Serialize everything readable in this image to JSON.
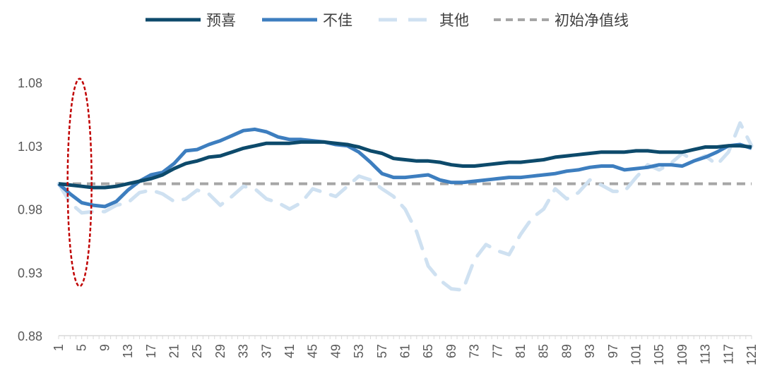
{
  "chart_data": {
    "type": "line",
    "title": "",
    "xlabel": "",
    "ylabel": "",
    "x_start": 1,
    "x_end": 121,
    "x_tick_labels": [
      "1",
      "5",
      "9",
      "13",
      "17",
      "21",
      "25",
      "29",
      "33",
      "37",
      "41",
      "45",
      "49",
      "53",
      "57",
      "61",
      "65",
      "69",
      "73",
      "77",
      "81",
      "85",
      "89",
      "93",
      "97",
      "101",
      "105",
      "109",
      "113",
      "117",
      "121"
    ],
    "y_tick_labels": [
      "1.08",
      "1.03",
      "0.98",
      "0.93",
      "0.88"
    ],
    "y_ticks": [
      1.08,
      1.03,
      0.98,
      0.93,
      0.88
    ],
    "ylim": [
      0.88,
      1.08
    ],
    "legend_position": "top-center",
    "series": [
      {
        "name": "预喜",
        "color": "#0d4a6b",
        "style": "solid",
        "anchors": [
          [
            1,
            1.0
          ],
          [
            3,
            0.999
          ],
          [
            5,
            0.998
          ],
          [
            7,
            0.997
          ],
          [
            9,
            0.997
          ],
          [
            11,
            0.998
          ],
          [
            13,
            1.0
          ],
          [
            15,
            1.002
          ],
          [
            17,
            1.004
          ],
          [
            19,
            1.007
          ],
          [
            21,
            1.012
          ],
          [
            23,
            1.016
          ],
          [
            25,
            1.018
          ],
          [
            27,
            1.021
          ],
          [
            29,
            1.022
          ],
          [
            31,
            1.025
          ],
          [
            33,
            1.028
          ],
          [
            35,
            1.03
          ],
          [
            37,
            1.032
          ],
          [
            39,
            1.032
          ],
          [
            41,
            1.032
          ],
          [
            43,
            1.033
          ],
          [
            45,
            1.033
          ],
          [
            47,
            1.033
          ],
          [
            49,
            1.032
          ],
          [
            51,
            1.031
          ],
          [
            53,
            1.029
          ],
          [
            55,
            1.026
          ],
          [
            57,
            1.024
          ],
          [
            59,
            1.02
          ],
          [
            61,
            1.019
          ],
          [
            63,
            1.018
          ],
          [
            65,
            1.018
          ],
          [
            67,
            1.017
          ],
          [
            69,
            1.015
          ],
          [
            71,
            1.014
          ],
          [
            73,
            1.014
          ],
          [
            75,
            1.015
          ],
          [
            77,
            1.016
          ],
          [
            79,
            1.017
          ],
          [
            81,
            1.017
          ],
          [
            83,
            1.018
          ],
          [
            85,
            1.019
          ],
          [
            87,
            1.021
          ],
          [
            89,
            1.022
          ],
          [
            91,
            1.023
          ],
          [
            93,
            1.024
          ],
          [
            95,
            1.025
          ],
          [
            97,
            1.025
          ],
          [
            99,
            1.025
          ],
          [
            101,
            1.026
          ],
          [
            103,
            1.026
          ],
          [
            105,
            1.025
          ],
          [
            107,
            1.025
          ],
          [
            109,
            1.025
          ],
          [
            111,
            1.027
          ],
          [
            113,
            1.029
          ],
          [
            115,
            1.029
          ],
          [
            117,
            1.03
          ],
          [
            119,
            1.03
          ],
          [
            121,
            1.029
          ]
        ]
      },
      {
        "name": "不佳",
        "color": "#3d7ebf",
        "style": "solid",
        "anchors": [
          [
            1,
            1.0
          ],
          [
            3,
            0.992
          ],
          [
            5,
            0.985
          ],
          [
            7,
            0.983
          ],
          [
            9,
            0.982
          ],
          [
            11,
            0.986
          ],
          [
            13,
            0.995
          ],
          [
            15,
            1.002
          ],
          [
            17,
            1.007
          ],
          [
            19,
            1.009
          ],
          [
            21,
            1.016
          ],
          [
            23,
            1.026
          ],
          [
            25,
            1.027
          ],
          [
            27,
            1.031
          ],
          [
            29,
            1.034
          ],
          [
            31,
            1.038
          ],
          [
            33,
            1.042
          ],
          [
            35,
            1.043
          ],
          [
            37,
            1.041
          ],
          [
            39,
            1.037
          ],
          [
            41,
            1.035
          ],
          [
            43,
            1.035
          ],
          [
            45,
            1.034
          ],
          [
            47,
            1.033
          ],
          [
            49,
            1.031
          ],
          [
            51,
            1.03
          ],
          [
            53,
            1.025
          ],
          [
            55,
            1.017
          ],
          [
            57,
            1.008
          ],
          [
            59,
            1.005
          ],
          [
            61,
            1.005
          ],
          [
            63,
            1.006
          ],
          [
            65,
            1.007
          ],
          [
            67,
            1.003
          ],
          [
            69,
            1.001
          ],
          [
            71,
            1.001
          ],
          [
            73,
            1.002
          ],
          [
            75,
            1.003
          ],
          [
            77,
            1.004
          ],
          [
            79,
            1.005
          ],
          [
            81,
            1.005
          ],
          [
            83,
            1.006
          ],
          [
            85,
            1.007
          ],
          [
            87,
            1.008
          ],
          [
            89,
            1.01
          ],
          [
            91,
            1.011
          ],
          [
            93,
            1.013
          ],
          [
            95,
            1.014
          ],
          [
            97,
            1.014
          ],
          [
            99,
            1.011
          ],
          [
            101,
            1.012
          ],
          [
            103,
            1.013
          ],
          [
            105,
            1.015
          ],
          [
            107,
            1.015
          ],
          [
            109,
            1.014
          ],
          [
            111,
            1.018
          ],
          [
            113,
            1.021
          ],
          [
            115,
            1.025
          ],
          [
            117,
            1.03
          ],
          [
            119,
            1.031
          ],
          [
            121,
            1.028
          ]
        ]
      },
      {
        "name": "其他",
        "color": "#cfe1f1",
        "style": "dashed",
        "anchors": [
          [
            1,
            1.0
          ],
          [
            3,
            0.985
          ],
          [
            5,
            0.977
          ],
          [
            7,
            0.978
          ],
          [
            9,
            0.978
          ],
          [
            11,
            0.983
          ],
          [
            13,
            0.985
          ],
          [
            15,
            0.993
          ],
          [
            17,
            0.995
          ],
          [
            19,
            0.992
          ],
          [
            21,
            0.986
          ],
          [
            23,
            0.988
          ],
          [
            25,
            0.995
          ],
          [
            27,
            0.992
          ],
          [
            29,
            0.983
          ],
          [
            31,
            0.99
          ],
          [
            33,
            0.998
          ],
          [
            35,
            0.996
          ],
          [
            37,
            0.988
          ],
          [
            39,
            0.985
          ],
          [
            41,
            0.98
          ],
          [
            43,
            0.985
          ],
          [
            45,
            0.996
          ],
          [
            47,
            0.993
          ],
          [
            49,
            0.99
          ],
          [
            51,
            0.998
          ],
          [
            53,
            1.006
          ],
          [
            55,
            1.003
          ],
          [
            57,
            0.996
          ],
          [
            59,
            0.99
          ],
          [
            61,
            0.98
          ],
          [
            63,
            0.962
          ],
          [
            65,
            0.935
          ],
          [
            67,
            0.924
          ],
          [
            69,
            0.917
          ],
          [
            71,
            0.916
          ],
          [
            73,
            0.94
          ],
          [
            75,
            0.952
          ],
          [
            77,
            0.947
          ],
          [
            79,
            0.944
          ],
          [
            81,
            0.96
          ],
          [
            83,
            0.973
          ],
          [
            85,
            0.98
          ],
          [
            87,
            0.996
          ],
          [
            89,
            0.988
          ],
          [
            91,
            0.993
          ],
          [
            93,
            1.003
          ],
          [
            95,
            0.999
          ],
          [
            97,
            0.994
          ],
          [
            99,
            0.994
          ],
          [
            101,
            1.005
          ],
          [
            103,
            1.015
          ],
          [
            105,
            1.011
          ],
          [
            107,
            1.016
          ],
          [
            109,
            1.024
          ],
          [
            111,
            1.018
          ],
          [
            113,
            1.022
          ],
          [
            115,
            1.015
          ],
          [
            117,
            1.025
          ],
          [
            119,
            1.048
          ],
          [
            121,
            1.03
          ]
        ]
      },
      {
        "name": "初始净值线",
        "color": "#a6a6a6",
        "style": "dashed",
        "anchors": [
          [
            1,
            1.0
          ],
          [
            121,
            1.0
          ]
        ]
      }
    ],
    "annotations": [
      {
        "type": "ellipse",
        "color": "#c00000",
        "x_center": 5,
        "y_top": 1.083,
        "y_bottom": 0.919
      }
    ]
  }
}
